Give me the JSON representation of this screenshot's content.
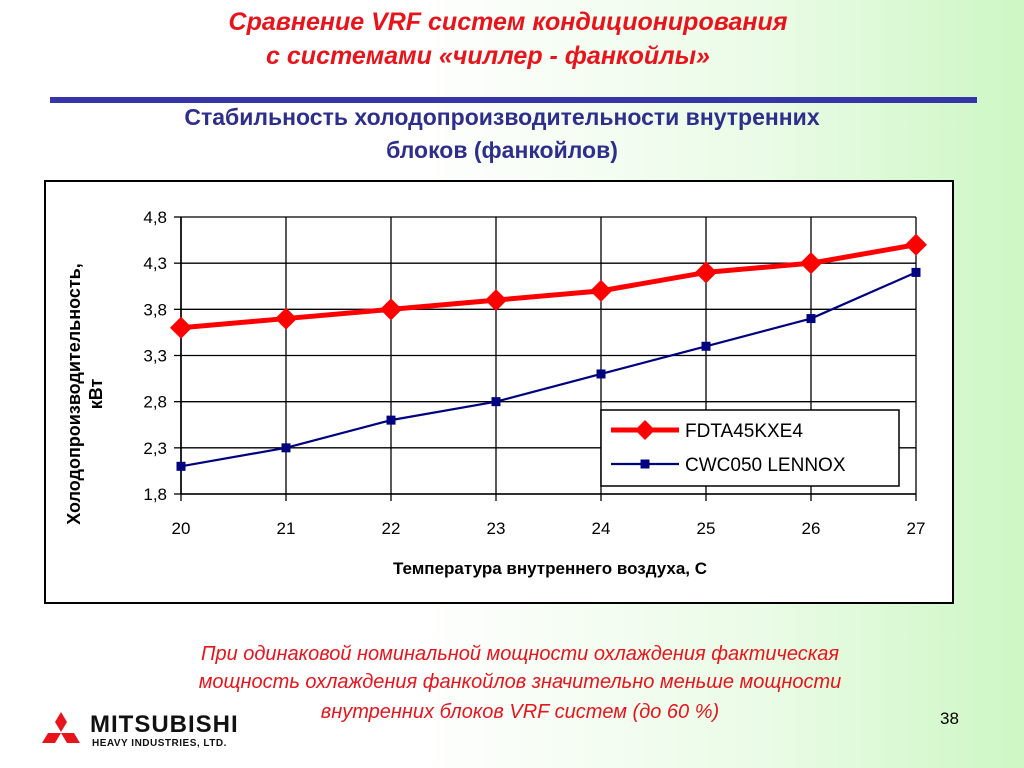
{
  "header": {
    "title_line1": "Сравнение VRF систем кондиционирования",
    "title_line2": "с системами «чиллер - фанкойлы»",
    "subtitle_line1": "Стабильность холодопроизводительности внутренних",
    "subtitle_line2": "блоков (фанкойлов)"
  },
  "chart_data": {
    "type": "line",
    "xlabel": "Температура внутреннего воздуха, С",
    "ylabel_line1": "Холодопроизводительность,",
    "ylabel_line2": "кВт",
    "x": [
      20,
      21,
      22,
      23,
      24,
      25,
      26,
      27
    ],
    "x_tick_labels": [
      "20",
      "21",
      "22",
      "23",
      "24",
      "25",
      "26",
      "27"
    ],
    "ylim": [
      1.8,
      4.8
    ],
    "y_ticks": [
      1.8,
      2.3,
      2.8,
      3.3,
      3.8,
      4.3,
      4.8
    ],
    "y_tick_labels": [
      "1,8",
      "2,3",
      "2,8",
      "3,3",
      "3,8",
      "4,3",
      "4,8"
    ],
    "grid": true,
    "legend_position": "bottom-right",
    "series": [
      {
        "name": "FDTA45KXE4",
        "color": "#ff0000",
        "marker": "diamond",
        "values": [
          3.6,
          3.7,
          3.8,
          3.9,
          4.0,
          4.2,
          4.3,
          4.5
        ]
      },
      {
        "name": "CWC050 LENNOX",
        "color": "#000080",
        "marker": "square",
        "values": [
          2.1,
          2.3,
          2.6,
          2.8,
          3.1,
          3.4,
          3.7,
          4.2
        ]
      }
    ]
  },
  "footer": {
    "note_line1": "При одинаковой номинальной мощности охлаждения фактическая",
    "note_line2": "мощность охлаждения фанкойлов значительно меньше мощности",
    "note_line3": "внутренних блоков VRF систем (до 60 %)",
    "page_number": "38",
    "logo_name": "MITSUBISHI",
    "logo_sub": "HEAVY INDUSTRIES, LTD.",
    "logo_color": "#e8141c"
  }
}
